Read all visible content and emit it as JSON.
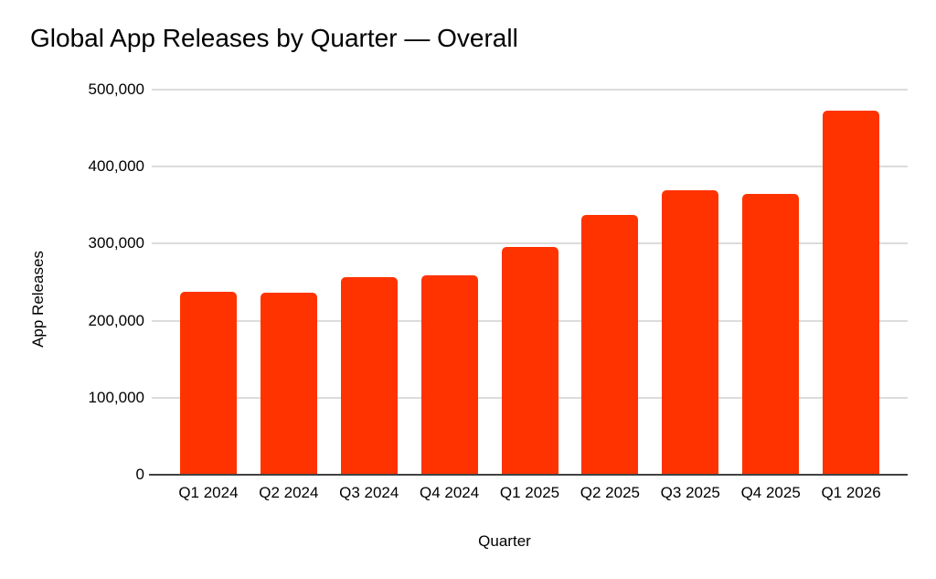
{
  "page": {
    "background": "#ffffff"
  },
  "chart_data": {
    "type": "bar",
    "title": "Global App Releases by Quarter — Overall",
    "xlabel": "Quarter",
    "ylabel": "App Releases",
    "categories": [
      "Q1 2024",
      "Q2 2024",
      "Q3 2024",
      "Q4 2024",
      "Q1 2025",
      "Q2 2025",
      "Q3 2025",
      "Q4 2025",
      "Q1 2026"
    ],
    "values": [
      238000,
      236000,
      257000,
      259000,
      296000,
      337000,
      369000,
      365000,
      473000
    ],
    "ylim": [
      0,
      500000
    ],
    "y_ticks": [
      0,
      100000,
      200000,
      300000,
      400000,
      500000
    ],
    "y_tick_labels": [
      "0",
      "100,000",
      "200,000",
      "300,000",
      "400,000",
      "500,000"
    ],
    "grid": true,
    "legend": "none",
    "bar_color": "#ff3300",
    "gridline_color": "#dcdcdc",
    "axis_line_color": "#424242",
    "text_color": "#000000"
  }
}
